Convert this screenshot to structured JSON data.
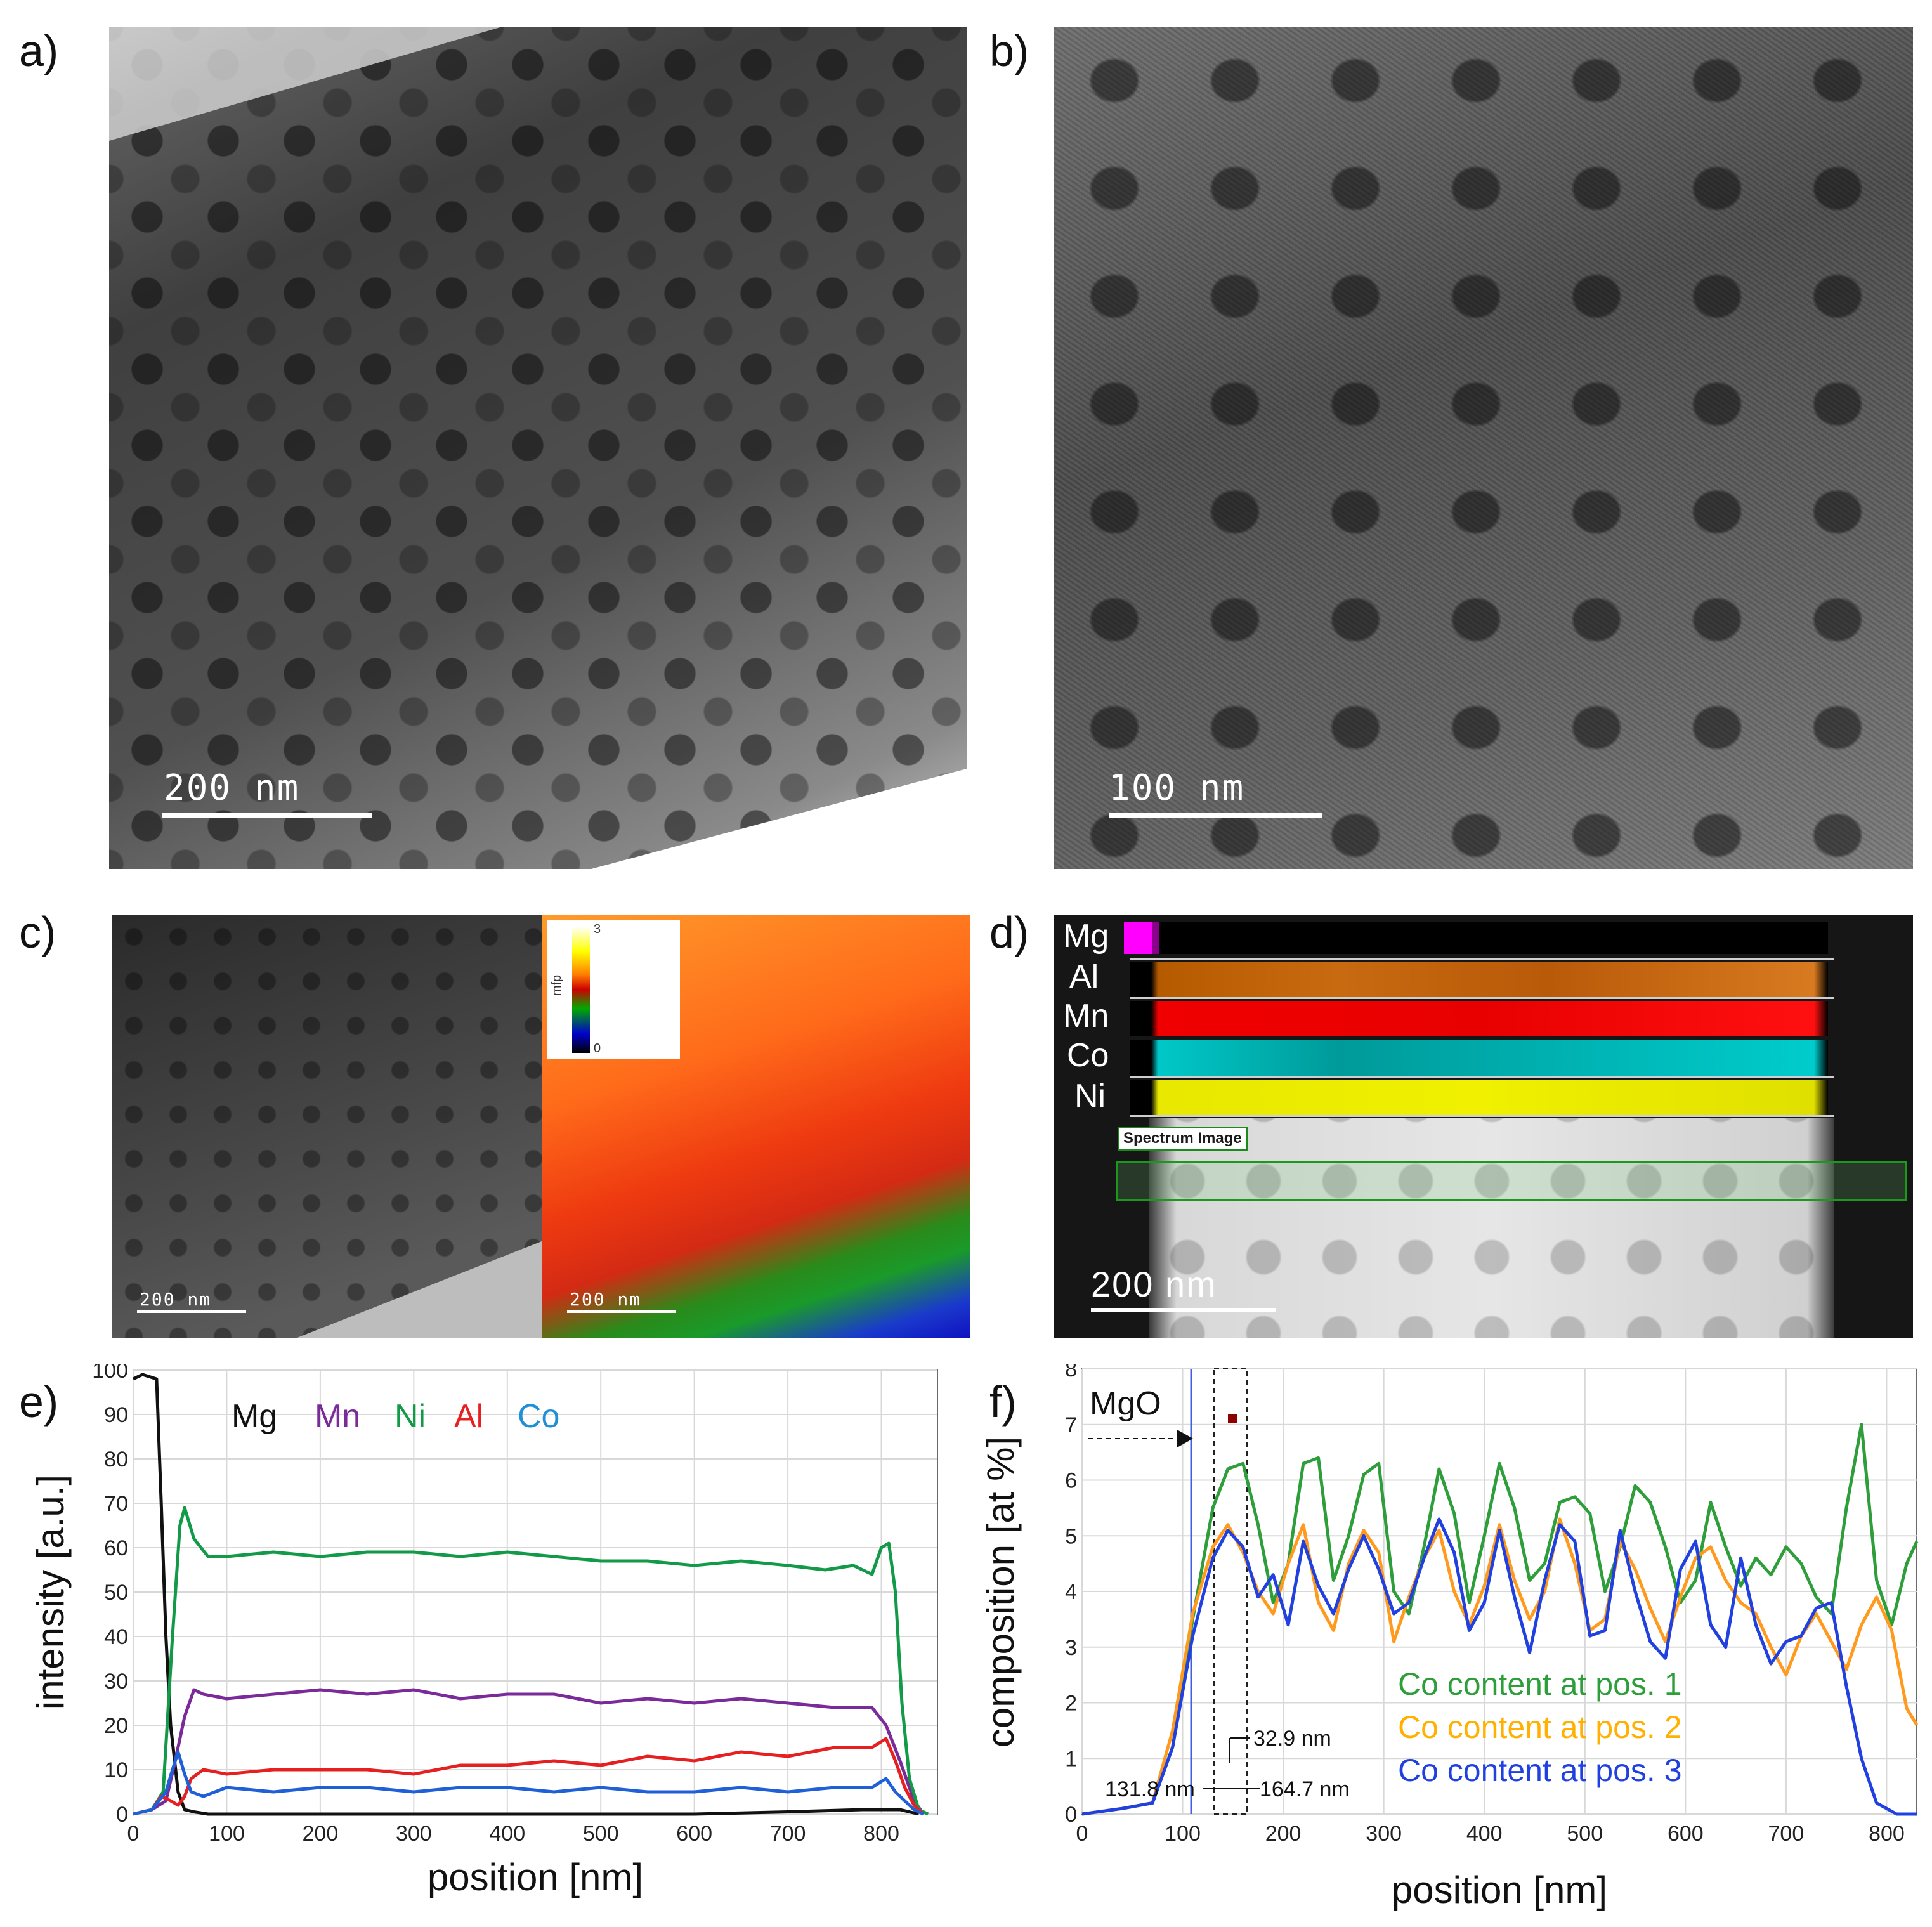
{
  "panels": {
    "a": {
      "label": "a)",
      "scalebar": "200 nm"
    },
    "b": {
      "label": "b)",
      "scalebar": "100 nm"
    },
    "c": {
      "label": "c)",
      "scalebar_left": "200 nm",
      "scalebar_right": "200 nm",
      "colorbar": {
        "title": "mfp",
        "max": "3",
        "min": "0"
      }
    },
    "d": {
      "label": "d)",
      "scalebar": "200 nm",
      "box_label": "Spectrum Image",
      "elements": [
        "Mg",
        "Al",
        "Mn",
        "Co",
        "Ni"
      ]
    },
    "e": {
      "label": "e)"
    },
    "f": {
      "label": "f)",
      "annotation_mgo": "MgO",
      "dim1": "32.9 nm",
      "dim2": "131.8 nm",
      "dim3": "164.7 nm"
    }
  },
  "colors": {
    "Mg": "#111111",
    "Mn": "#7b2a9a",
    "Ni": "#139a48",
    "Al": "#e62020",
    "Co": "#1f5fd8",
    "pos1": "#2e9e3a",
    "pos2": "#ff9a1e",
    "pos3": "#2040e0"
  },
  "chart_data": [
    {
      "type": "line",
      "panel": "e",
      "xlabel": "position [nm]",
      "ylabel": "intensity [a.u.]",
      "xlim": [
        0,
        860
      ],
      "ylim": [
        0,
        100
      ],
      "xticks": [
        0,
        100,
        200,
        300,
        400,
        500,
        600,
        700,
        800
      ],
      "yticks": [
        0,
        10,
        20,
        30,
        40,
        50,
        60,
        70,
        80,
        90,
        100
      ],
      "legend": [
        "Mg",
        "Mn",
        "Ni",
        "Al",
        "Co"
      ],
      "series": [
        {
          "name": "Mg",
          "x": [
            0,
            10,
            25,
            30,
            35,
            40,
            48,
            55,
            65,
            80,
            200,
            400,
            600,
            700,
            780,
            800,
            820,
            840
          ],
          "y": [
            98,
            99,
            98,
            70,
            40,
            20,
            5,
            1,
            0.5,
            0,
            0,
            0,
            0,
            0.5,
            1,
            1,
            1,
            0
          ]
        },
        {
          "name": "Mn",
          "x": [
            0,
            20,
            35,
            45,
            55,
            65,
            75,
            100,
            150,
            200,
            250,
            300,
            350,
            400,
            450,
            500,
            550,
            600,
            650,
            700,
            750,
            790,
            805,
            820,
            835,
            845
          ],
          "y": [
            0,
            1,
            3,
            12,
            22,
            28,
            27,
            26,
            27,
            28,
            27,
            28,
            26,
            27,
            27,
            25,
            26,
            25,
            26,
            25,
            24,
            24,
            20,
            12,
            3,
            0
          ]
        },
        {
          "name": "Ni",
          "x": [
            0,
            20,
            32,
            42,
            50,
            55,
            65,
            80,
            100,
            150,
            200,
            250,
            300,
            350,
            400,
            450,
            500,
            550,
            600,
            650,
            700,
            740,
            770,
            790,
            800,
            808,
            815,
            822,
            830,
            840,
            850
          ],
          "y": [
            0,
            1,
            5,
            40,
            65,
            69,
            62,
            58,
            58,
            59,
            58,
            59,
            59,
            58,
            59,
            58,
            57,
            57,
            56,
            57,
            56,
            55,
            56,
            54,
            60,
            61,
            50,
            25,
            8,
            1,
            0
          ]
        },
        {
          "name": "Al",
          "x": [
            0,
            20,
            30,
            40,
            48,
            55,
            62,
            75,
            100,
            150,
            200,
            250,
            300,
            350,
            400,
            450,
            500,
            550,
            600,
            650,
            700,
            750,
            790,
            805,
            815,
            825,
            835,
            845
          ],
          "y": [
            0,
            1,
            4,
            3,
            2,
            4,
            8,
            10,
            9,
            10,
            10,
            10,
            9,
            11,
            11,
            12,
            11,
            13,
            12,
            14,
            13,
            15,
            15,
            17,
            12,
            6,
            2,
            0
          ]
        },
        {
          "name": "Co",
          "x": [
            0,
            20,
            35,
            42,
            48,
            55,
            62,
            75,
            100,
            150,
            200,
            250,
            300,
            350,
            400,
            450,
            500,
            550,
            600,
            650,
            700,
            750,
            790,
            805,
            815,
            825,
            835,
            845
          ],
          "y": [
            0,
            1,
            5,
            10,
            14,
            9,
            5,
            4,
            6,
            5,
            6,
            6,
            5,
            6,
            6,
            5,
            6,
            5,
            5,
            6,
            5,
            6,
            6,
            8,
            5,
            3,
            1,
            0
          ]
        }
      ]
    },
    {
      "type": "line",
      "panel": "f",
      "xlabel": "position [nm]",
      "ylabel": "composition [at %]",
      "xlim": [
        0,
        830
      ],
      "ylim": [
        0,
        8
      ],
      "xticks": [
        0,
        100,
        200,
        300,
        400,
        500,
        600,
        700,
        800
      ],
      "yticks": [
        0,
        1,
        2,
        3,
        4,
        5,
        6,
        7,
        8
      ],
      "legend": [
        "Co content at pos. 1",
        "Co content at pos. 2",
        "Co content at pos. 3"
      ],
      "series": [
        {
          "name": "Co content at pos. 1",
          "x": [
            0,
            40,
            70,
            90,
            110,
            130,
            145,
            160,
            175,
            190,
            205,
            220,
            235,
            250,
            265,
            280,
            295,
            310,
            325,
            340,
            355,
            370,
            385,
            400,
            415,
            430,
            445,
            460,
            475,
            490,
            505,
            520,
            535,
            550,
            565,
            580,
            595,
            610,
            625,
            640,
            655,
            670,
            685,
            700,
            715,
            730,
            745,
            760,
            775,
            790,
            805,
            820,
            830
          ],
          "y": [
            0,
            0.1,
            0.2,
            1.2,
            3.5,
            5.5,
            6.2,
            6.3,
            5.2,
            3.8,
            4.5,
            6.3,
            6.4,
            4.2,
            5.0,
            6.1,
            6.3,
            4.0,
            3.6,
            4.8,
            6.2,
            5.4,
            3.8,
            5.0,
            6.3,
            5.5,
            4.2,
            4.5,
            5.6,
            5.7,
            5.4,
            4.0,
            4.8,
            5.9,
            5.6,
            4.8,
            3.8,
            4.2,
            5.6,
            4.8,
            4.1,
            4.6,
            4.3,
            4.8,
            4.5,
            3.9,
            3.6,
            5.5,
            7.0,
            4.2,
            3.4,
            4.5,
            4.9
          ]
        },
        {
          "name": "Co content at pos. 2",
          "x": [
            0,
            40,
            70,
            90,
            110,
            130,
            145,
            160,
            175,
            190,
            205,
            220,
            235,
            250,
            265,
            280,
            295,
            310,
            325,
            340,
            355,
            370,
            385,
            400,
            415,
            430,
            445,
            460,
            475,
            490,
            505,
            520,
            535,
            550,
            565,
            580,
            595,
            610,
            625,
            640,
            655,
            670,
            685,
            700,
            715,
            730,
            745,
            760,
            775,
            790,
            805,
            820,
            830
          ],
          "y": [
            0,
            0.1,
            0.2,
            1.5,
            3.6,
            4.8,
            5.2,
            4.7,
            4.0,
            3.6,
            4.5,
            5.2,
            3.8,
            3.3,
            4.5,
            5.1,
            4.7,
            3.1,
            3.9,
            4.6,
            5.1,
            4.0,
            3.4,
            4.1,
            5.2,
            4.2,
            3.5,
            4.0,
            5.3,
            4.5,
            3.3,
            3.5,
            4.9,
            4.4,
            3.7,
            3.1,
            3.9,
            4.6,
            4.8,
            4.2,
            3.8,
            3.6,
            3.0,
            2.5,
            3.2,
            3.6,
            3.1,
            2.6,
            3.4,
            3.9,
            3.3,
            1.9,
            1.6
          ]
        },
        {
          "name": "Co content at pos. 3",
          "x": [
            0,
            40,
            70,
            90,
            110,
            130,
            145,
            160,
            175,
            190,
            205,
            220,
            235,
            250,
            265,
            280,
            295,
            310,
            325,
            340,
            355,
            370,
            385,
            400,
            415,
            430,
            445,
            460,
            475,
            490,
            505,
            520,
            535,
            550,
            565,
            580,
            595,
            610,
            625,
            640,
            655,
            670,
            685,
            700,
            715,
            730,
            745,
            760,
            775,
            790,
            800,
            810,
            820,
            830
          ],
          "y": [
            0,
            0.1,
            0.2,
            1.2,
            3.2,
            4.6,
            5.1,
            4.8,
            3.9,
            4.3,
            3.4,
            4.9,
            4.1,
            3.6,
            4.4,
            5.0,
            4.4,
            3.6,
            3.8,
            4.6,
            5.3,
            4.7,
            3.3,
            3.8,
            5.1,
            3.9,
            2.9,
            4.2,
            5.2,
            4.9,
            3.2,
            3.3,
            5.1,
            4.0,
            3.1,
            2.8,
            4.4,
            4.9,
            3.4,
            3.0,
            4.6,
            3.4,
            2.7,
            3.1,
            3.2,
            3.7,
            3.8,
            2.3,
            1.0,
            0.2,
            0.1,
            0.0,
            0.0,
            0.0
          ]
        }
      ]
    }
  ]
}
